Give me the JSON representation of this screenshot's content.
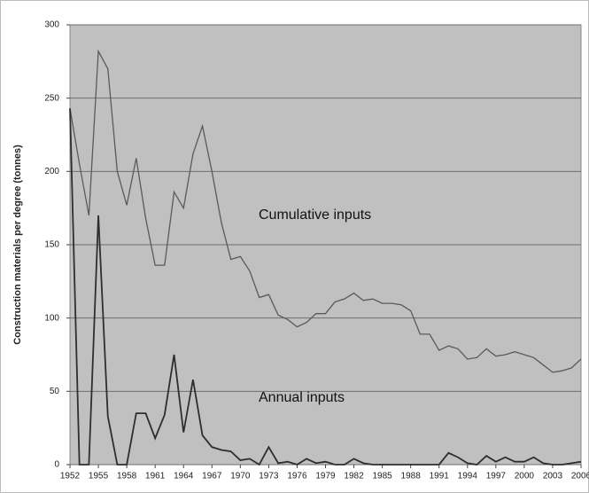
{
  "chart_data": {
    "type": "line",
    "y_label": "Construction materials per degree (tonnes)",
    "x": [
      1952,
      1953,
      1954,
      1955,
      1956,
      1957,
      1958,
      1959,
      1960,
      1961,
      1962,
      1963,
      1964,
      1965,
      1966,
      1967,
      1968,
      1969,
      1970,
      1971,
      1972,
      1973,
      1974,
      1975,
      1976,
      1977,
      1978,
      1979,
      1980,
      1981,
      1982,
      1983,
      1984,
      1985,
      1986,
      1987,
      1988,
      1989,
      1990,
      1991,
      1992,
      1993,
      1994,
      1995,
      1996,
      1997,
      1998,
      1999,
      2000,
      2001,
      2002,
      2003,
      2004,
      2005,
      2006
    ],
    "series": [
      {
        "name": "Cumulative inputs",
        "color": "#5a5a5a",
        "values": [
          243,
          205,
          170,
          282,
          270,
          200,
          177,
          209,
          168,
          136,
          136,
          186,
          175,
          212,
          231,
          200,
          165,
          140,
          142,
          132,
          114,
          116,
          102,
          99,
          94,
          97,
          103,
          103,
          111,
          113,
          117,
          112,
          113,
          110,
          110,
          109,
          105,
          89,
          89,
          78,
          81,
          79,
          72,
          73,
          79,
          74,
          75,
          77,
          75,
          73,
          68,
          63,
          64,
          66,
          72
        ]
      },
      {
        "name": "Annual inputs",
        "color": "#2e2e2e",
        "values": [
          243,
          0,
          0,
          170,
          33,
          0,
          0,
          35,
          35,
          18,
          34,
          75,
          22,
          58,
          20,
          12,
          10,
          9,
          3,
          4,
          0,
          12,
          1,
          2,
          0,
          4,
          1,
          2,
          0,
          0,
          4,
          1,
          0,
          0,
          0,
          0,
          0,
          0,
          0,
          0,
          8,
          5,
          1,
          0,
          6,
          2,
          5,
          2,
          2,
          5,
          1,
          0,
          0,
          1,
          2
        ]
      }
    ],
    "xlim": [
      1952,
      2006
    ],
    "xticks": [
      1952,
      1955,
      1958,
      1961,
      1964,
      1967,
      1970,
      1973,
      1976,
      1979,
      1982,
      1985,
      1988,
      1991,
      1994,
      1997,
      2000,
      2003,
      2006
    ],
    "ylim": [
      0,
      300
    ],
    "yticks": [
      0,
      50,
      100,
      150,
      200,
      250,
      300
    ],
    "grid": true,
    "plot_background": "#c0c0c0"
  }
}
